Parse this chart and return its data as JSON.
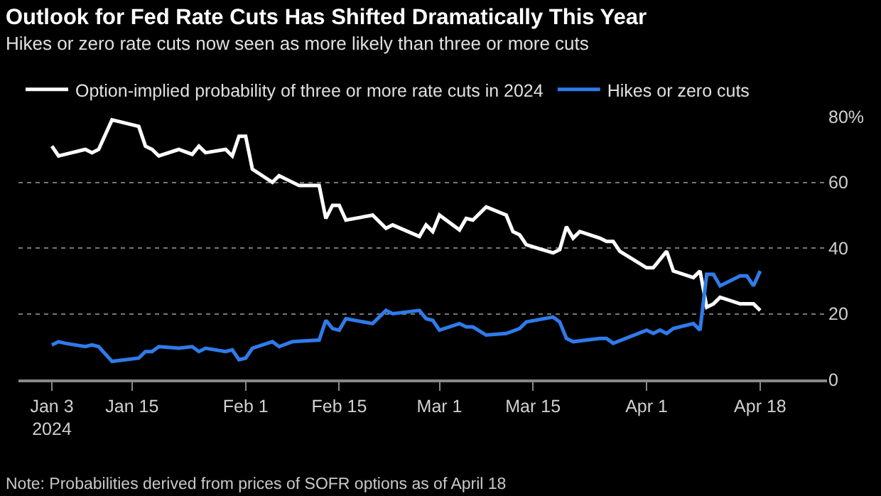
{
  "chart_data": {
    "type": "line",
    "title": "Outlook for Fed Rate Cuts Has Shifted Dramatically This Year",
    "subtitle": "Hikes or zero rate cuts now seen as more likely than three or more cuts",
    "annotations": [
      "Note: Probabilities derived from prices of SOFR options as of April 18"
    ],
    "series": [
      {
        "name": "Option-implied probability of three or more rate cuts in 2024",
        "color": "#ffffff",
        "x": [
          "2024-01-03",
          "2024-01-04",
          "2024-01-05",
          "2024-01-08",
          "2024-01-09",
          "2024-01-10",
          "2024-01-12",
          "2024-01-16",
          "2024-01-17",
          "2024-01-18",
          "2024-01-19",
          "2024-01-22",
          "2024-01-24",
          "2024-01-25",
          "2024-01-26",
          "2024-01-29",
          "2024-01-30",
          "2024-01-31",
          "2024-02-01",
          "2024-02-02",
          "2024-02-05",
          "2024-02-06",
          "2024-02-07",
          "2024-02-09",
          "2024-02-12",
          "2024-02-13",
          "2024-02-14",
          "2024-02-15",
          "2024-02-16",
          "2024-02-20",
          "2024-02-22",
          "2024-02-23",
          "2024-02-27",
          "2024-02-28",
          "2024-02-29",
          "2024-03-01",
          "2024-03-04",
          "2024-03-05",
          "2024-03-06",
          "2024-03-08",
          "2024-03-11",
          "2024-03-12",
          "2024-03-13",
          "2024-03-14",
          "2024-03-18",
          "2024-03-19",
          "2024-03-20",
          "2024-03-21",
          "2024-03-22",
          "2024-03-25",
          "2024-03-26",
          "2024-03-27",
          "2024-03-28",
          "2024-04-01",
          "2024-04-02",
          "2024-04-04",
          "2024-04-05",
          "2024-04-08",
          "2024-04-09",
          "2024-04-10",
          "2024-04-11",
          "2024-04-12",
          "2024-04-15",
          "2024-04-17",
          "2024-04-18"
        ],
        "values": [
          71,
          68,
          68.5,
          70,
          69,
          70,
          79,
          77,
          71,
          70,
          68,
          70,
          68.5,
          71,
          69,
          70,
          68,
          74,
          74,
          64,
          60,
          62,
          61,
          59,
          59,
          49,
          53,
          53,
          48.5,
          50,
          46,
          47,
          43.5,
          47,
          45,
          50,
          45.5,
          49,
          48.5,
          52.5,
          50,
          45,
          44,
          41,
          38.5,
          39.5,
          46.5,
          43,
          45,
          43,
          42,
          42,
          39,
          34,
          34,
          39,
          33,
          31,
          33,
          22,
          23,
          25,
          23,
          23,
          21
        ]
      },
      {
        "name": "Hikes or zero cuts",
        "color": "#2f7bea",
        "x": [
          "2024-01-03",
          "2024-01-04",
          "2024-01-05",
          "2024-01-08",
          "2024-01-09",
          "2024-01-10",
          "2024-01-12",
          "2024-01-16",
          "2024-01-17",
          "2024-01-18",
          "2024-01-19",
          "2024-01-22",
          "2024-01-24",
          "2024-01-25",
          "2024-01-26",
          "2024-01-29",
          "2024-01-30",
          "2024-01-31",
          "2024-02-01",
          "2024-02-02",
          "2024-02-05",
          "2024-02-06",
          "2024-02-08",
          "2024-02-12",
          "2024-02-13",
          "2024-02-14",
          "2024-02-15",
          "2024-02-16",
          "2024-02-20",
          "2024-02-22",
          "2024-02-23",
          "2024-02-27",
          "2024-02-28",
          "2024-02-29",
          "2024-03-01",
          "2024-03-04",
          "2024-03-05",
          "2024-03-06",
          "2024-03-08",
          "2024-03-11",
          "2024-03-13",
          "2024-03-14",
          "2024-03-18",
          "2024-03-19",
          "2024-03-20",
          "2024-03-21",
          "2024-03-25",
          "2024-03-26",
          "2024-03-27",
          "2024-04-01",
          "2024-04-02",
          "2024-04-03",
          "2024-04-04",
          "2024-04-05",
          "2024-04-08",
          "2024-04-09",
          "2024-04-10",
          "2024-04-11",
          "2024-04-12",
          "2024-04-15",
          "2024-04-16",
          "2024-04-17",
          "2024-04-18"
        ],
        "values": [
          10.5,
          11.5,
          11,
          10,
          10.5,
          10,
          5.5,
          6.5,
          8.5,
          8.5,
          10,
          9.5,
          10,
          8.5,
          9.5,
          8.5,
          9,
          6,
          6.5,
          9.5,
          11.5,
          10,
          11.5,
          12,
          18,
          15.5,
          15,
          18.5,
          17,
          21,
          20,
          21,
          18.5,
          18,
          15,
          17,
          16,
          16,
          13.5,
          14,
          15.5,
          17.5,
          19,
          17.5,
          12.5,
          11.5,
          12.5,
          12.5,
          11,
          15,
          14,
          15,
          14,
          15.5,
          17,
          15,
          32,
          32,
          28.5,
          31.5,
          31.5,
          28.5,
          33
        ]
      }
    ],
    "xlim": [
      "2023-12-29",
      "2024-04-28"
    ],
    "xticks": [
      {
        "value": "2024-01-03",
        "label": "Jan 3\n2024"
      },
      {
        "value": "2024-01-15",
        "label": "Jan 15"
      },
      {
        "value": "2024-02-01",
        "label": "Feb 1"
      },
      {
        "value": "2024-02-15",
        "label": "Feb 15"
      },
      {
        "value": "2024-03-01",
        "label": "Mar 1"
      },
      {
        "value": "2024-03-15",
        "label": "Mar 15"
      },
      {
        "value": "2024-04-01",
        "label": "Apr 1"
      },
      {
        "value": "2024-04-18",
        "label": "Apr 18"
      }
    ],
    "ylim": [
      0,
      80
    ],
    "yticks": [
      0,
      20,
      40,
      60,
      {
        "value": 80,
        "label": "80%"
      }
    ],
    "grid": "y",
    "legend": "top left",
    "marker": "none",
    "line_style": "solid"
  }
}
